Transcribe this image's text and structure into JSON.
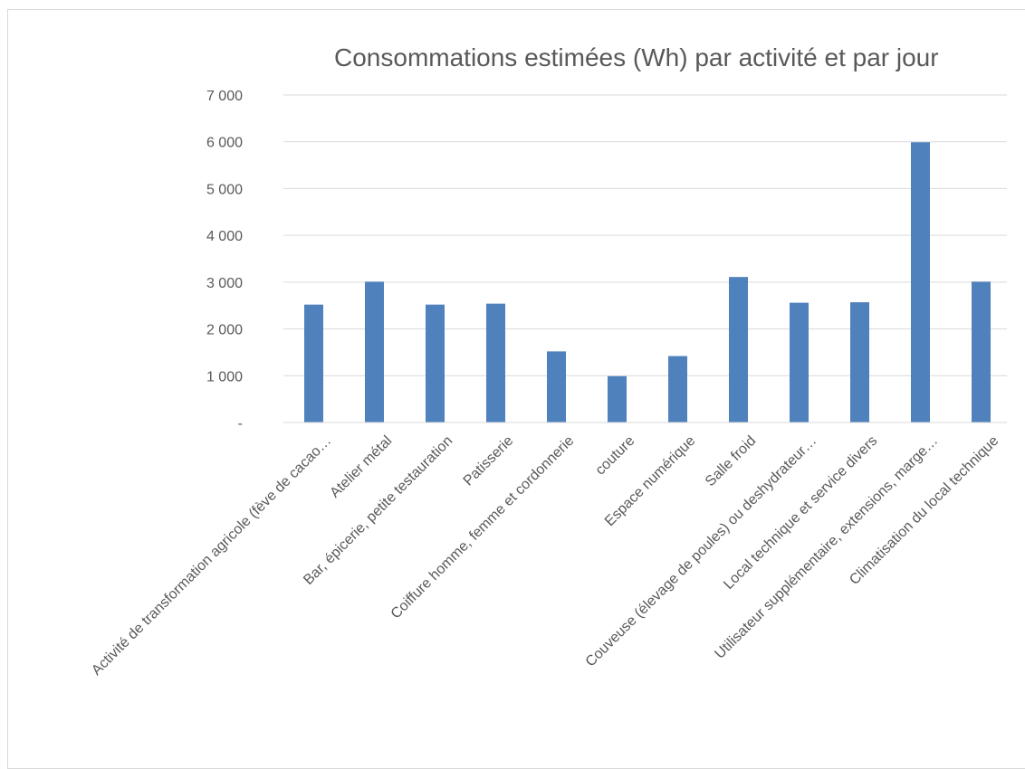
{
  "chart_data": {
    "type": "bar",
    "title": "Consommations estimées (Wh) par activité et par jour",
    "xlabel": "",
    "ylabel": "",
    "ylim": [
      0,
      7000
    ],
    "yticks": [
      {
        "value": 0,
        "label": "-"
      },
      {
        "value": 1000,
        "label": "1 000"
      },
      {
        "value": 2000,
        "label": "2 000"
      },
      {
        "value": 3000,
        "label": "3 000"
      },
      {
        "value": 4000,
        "label": "4 000"
      },
      {
        "value": 5000,
        "label": "5 000"
      },
      {
        "value": 6000,
        "label": "6 000"
      },
      {
        "value": 7000,
        "label": "7 000"
      }
    ],
    "grid": true,
    "legend": "none",
    "bar_color": "#4f81bd",
    "categories": [
      "Activité de transformation agricole (fève de cacao…",
      "Atelier métal",
      "Bar, épicerie, petite testauration",
      "Patisserie",
      "Coiffure homme, femme et cordonnerie",
      "couture",
      "Espace numérique",
      "Salle froid",
      "Couveuse (élevage de poules) ou deshydrateur…",
      "Local technique et service divers",
      "Utilisateur supplémentaire, extensions, marge…",
      "Climatisation du local technique"
    ],
    "values": [
      2520,
      3010,
      2520,
      2540,
      1520,
      990,
      1420,
      3110,
      2560,
      2570,
      5990,
      3010
    ]
  }
}
